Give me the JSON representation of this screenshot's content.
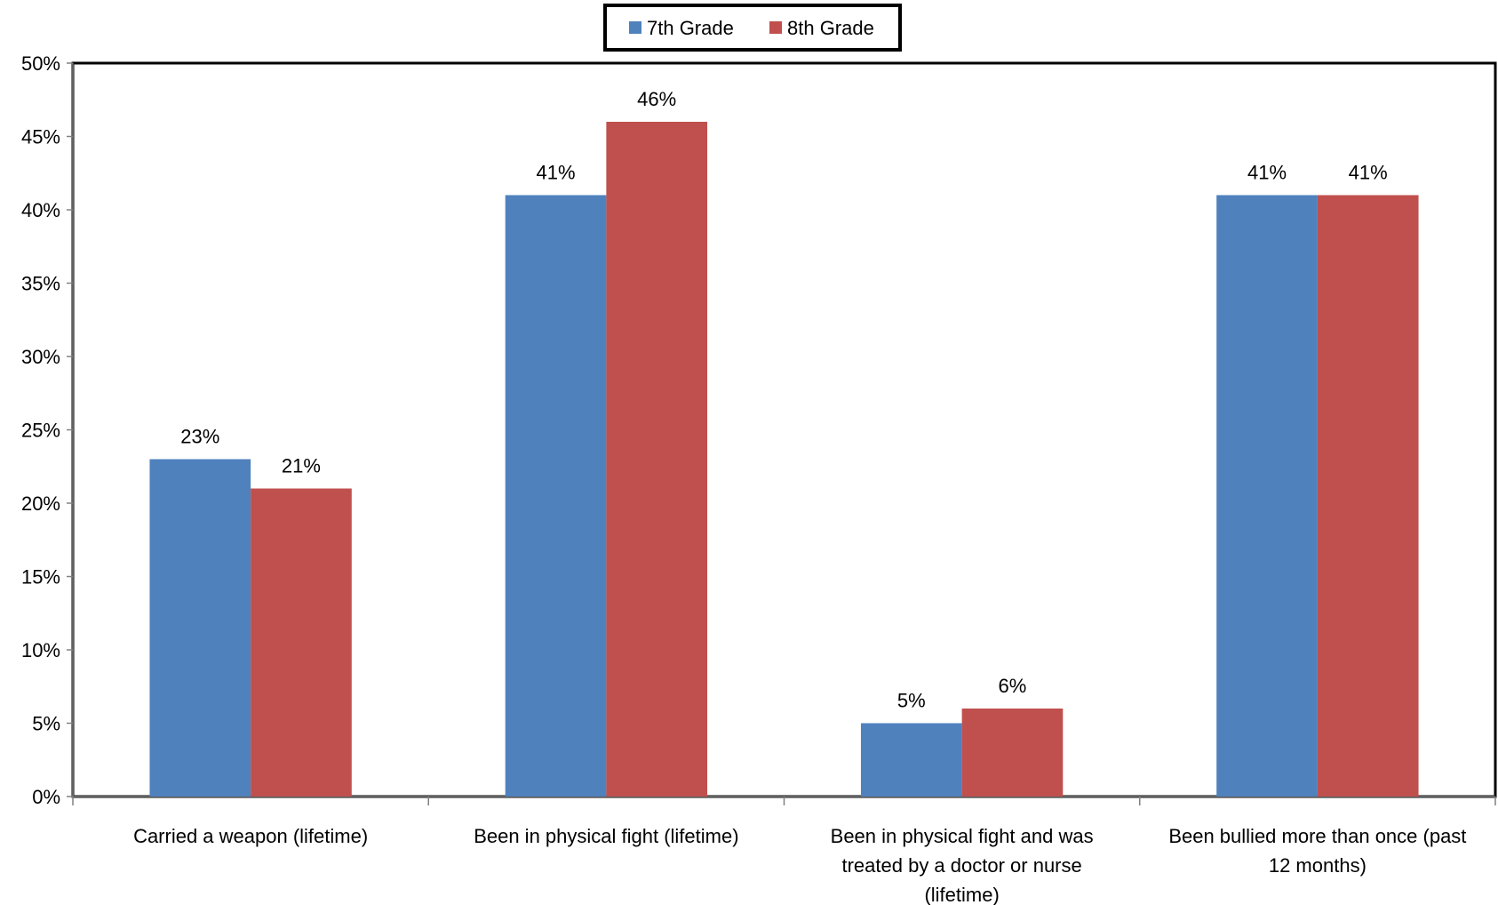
{
  "chart_data": {
    "type": "bar",
    "categories": [
      [
        "Carried a weapon (lifetime)"
      ],
      [
        "Been in physical fight (lifetime)"
      ],
      [
        "Been in physical fight and was",
        "treated by a doctor or nurse",
        "(lifetime)"
      ],
      [
        "Been bullied more than once (past",
        "12 months)"
      ]
    ],
    "series": [
      {
        "name": "7th Grade",
        "color": "#4F81BD",
        "values": [
          23,
          41,
          5,
          41
        ],
        "labels": [
          "23%",
          "41%",
          "5%",
          "41%"
        ]
      },
      {
        "name": "8th Grade",
        "color": "#C0504D",
        "values": [
          21,
          46,
          6,
          41
        ],
        "labels": [
          "21%",
          "46%",
          "6%",
          "41%"
        ]
      }
    ],
    "yticks": [
      "0%",
      "5%",
      "10%",
      "15%",
      "20%",
      "25%",
      "30%",
      "35%",
      "40%",
      "45%",
      "50%"
    ],
    "ylim": [
      0,
      50
    ],
    "legend_position": "top-center",
    "grid": false
  }
}
